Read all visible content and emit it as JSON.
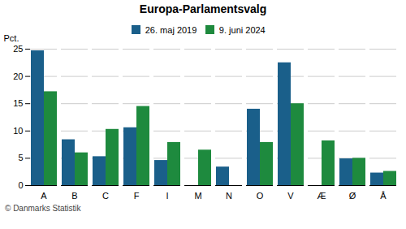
{
  "chart_data": {
    "type": "bar",
    "title": "Europa-Parlamentsvalg",
    "categories": [
      "A",
      "B",
      "C",
      "F",
      "I",
      "M",
      "N",
      "O",
      "V",
      "Æ",
      "Ø",
      "Å"
    ],
    "series": [
      {
        "name": "26. maj 2019",
        "color": "#1a5f8a",
        "values": [
          24.7,
          8.4,
          5.3,
          10.6,
          4.6,
          0,
          3.4,
          14.0,
          22.5,
          0,
          4.9,
          2.3
        ]
      },
      {
        "name": "9. juni 2024",
        "color": "#1e8a3e",
        "values": [
          17.2,
          6.0,
          10.3,
          14.5,
          7.9,
          6.5,
          0,
          7.9,
          15.0,
          8.2,
          5.0,
          2.6
        ]
      }
    ],
    "ylabel": "Pct.",
    "ylim": [
      0,
      25
    ],
    "yticks": [
      0,
      5,
      10,
      15,
      20,
      25
    ],
    "grid": true,
    "legend": "top",
    "caption": "© Danmarks Statistik"
  }
}
